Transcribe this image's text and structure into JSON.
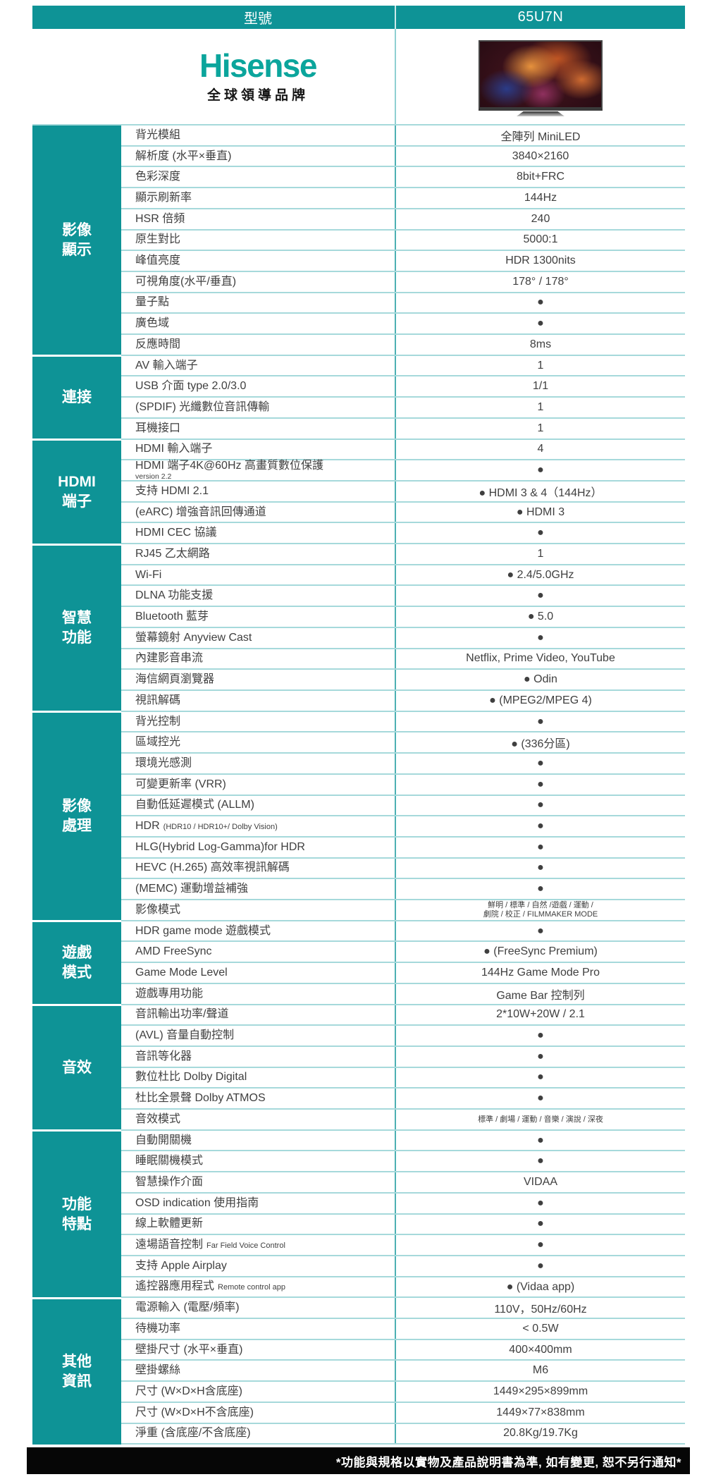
{
  "colors": {
    "header_teal": "#0e9396",
    "brand_teal": "#0ba59c",
    "row_line": "#a6d9db",
    "footer_bg": "#060606"
  },
  "header": {
    "model_label": "型號",
    "model_value": "65U7N"
  },
  "brand": {
    "wordmark": "Hisense",
    "tagline": "全球領導品牌"
  },
  "sections": [
    {
      "category_lines": [
        "影像",
        "顯示"
      ],
      "rows": [
        {
          "label": "背光模組",
          "value": "全陣列 MiniLED"
        },
        {
          "label": "解析度 (水平×垂直)",
          "value": "3840×2160"
        },
        {
          "label": "色彩深度",
          "value": "8bit+FRC"
        },
        {
          "label": "顯示刷新率",
          "value": "144Hz"
        },
        {
          "label": "HSR 倍頻",
          "value": "240"
        },
        {
          "label": "原生對比",
          "value": "5000:1"
        },
        {
          "label": "峰值亮度",
          "value": "HDR 1300nits"
        },
        {
          "label": "可視角度(水平/垂直)",
          "value": "178° / 178°"
        },
        {
          "label": "量子點",
          "value": "●"
        },
        {
          "label": "廣色域",
          "value": "●"
        },
        {
          "label": "反應時間",
          "value": "8ms"
        }
      ]
    },
    {
      "category_lines": [
        "連接"
      ],
      "rows": [
        {
          "label": "AV 輸入端子",
          "value": "1"
        },
        {
          "label": "USB 介面 type 2.0/3.0",
          "value": "1/1"
        },
        {
          "label": "(SPDIF) 光纖數位音訊傳輸",
          "value": "1"
        },
        {
          "label": "耳機接口",
          "value": "1"
        }
      ]
    },
    {
      "category_lines": [
        "HDMI",
        "端子"
      ],
      "rows": [
        {
          "label": "HDMI 輸入端子",
          "value": "4"
        },
        {
          "label": "HDMI 端子4K@60Hz 高畫質數位保護",
          "label_sub": "version 2.2",
          "value": "●"
        },
        {
          "label": "支持 HDMI 2.1",
          "value": "● HDMI 3 & 4（144Hz）"
        },
        {
          "label": "(eARC) 增強音訊回傳通道",
          "value": "● HDMI 3"
        },
        {
          "label": "HDMI CEC 協議",
          "value": "●"
        }
      ]
    },
    {
      "category_lines": [
        "智慧",
        "功能"
      ],
      "rows": [
        {
          "label": "RJ45 乙太網路",
          "value": "1"
        },
        {
          "label": "Wi-Fi",
          "value": "● 2.4/5.0GHz"
        },
        {
          "label": "DLNA 功能支援",
          "value": "●"
        },
        {
          "label": "Bluetooth 藍芽",
          "value": "● 5.0"
        },
        {
          "label": "螢幕鏡射 Anyview Cast",
          "value": "●"
        },
        {
          "label": "內建影音串流",
          "value": "Netflix, Prime Video, YouTube"
        },
        {
          "label": "海信網頁瀏覽器",
          "value": "● Odin"
        },
        {
          "label": "視訊解碼",
          "value": "● (MPEG2/MPEG 4)"
        }
      ]
    },
    {
      "category_lines": [
        "影像",
        "處理"
      ],
      "rows": [
        {
          "label": "背光控制",
          "value": "●"
        },
        {
          "label": "區域控光",
          "value": "● (336分區)"
        },
        {
          "label": "環境光感測",
          "value": "●"
        },
        {
          "label": "可變更新率 (VRR)",
          "value": "●"
        },
        {
          "label": "自動低延遲模式 (ALLM)",
          "value": "●"
        },
        {
          "label": "HDR",
          "label_small": "(HDR10 / HDR10+/ Dolby Vision)",
          "value": "●"
        },
        {
          "label": "HLG(Hybrid Log-Gamma)for HDR",
          "value": "●"
        },
        {
          "label": "HEVC (H.265) 高效率視訊解碼",
          "value": "●"
        },
        {
          "label": "(MEMC) 運動增益補強",
          "value": "●"
        },
        {
          "label": "影像模式",
          "small": true,
          "value": "鮮明 / 標準 / 自然 /遊戲 / 運動 /",
          "value2": "劇院 / 校正 / FILMMAKER MODE"
        }
      ]
    },
    {
      "category_lines": [
        "遊戲",
        "模式"
      ],
      "rows": [
        {
          "label": "HDR game mode 遊戲模式",
          "value": "●"
        },
        {
          "label": "AMD FreeSync",
          "value": "● (FreeSync Premium)"
        },
        {
          "label": "Game Mode Level",
          "value": "144Hz Game Mode Pro"
        },
        {
          "label": "遊戲專用功能",
          "value": "Game Bar 控制列"
        }
      ]
    },
    {
      "category_lines": [
        "音效"
      ],
      "rows": [
        {
          "label": "音訊輸出功率/聲道",
          "value": "2*10W+20W / 2.1"
        },
        {
          "label": "(AVL) 音量自動控制",
          "value": "●"
        },
        {
          "label": "音訊等化器",
          "value": "●"
        },
        {
          "label": "數位杜比 Dolby Digital",
          "value": "●"
        },
        {
          "label": "杜比全景聲 Dolby ATMOS",
          "value": "●"
        },
        {
          "label": "音效模式",
          "small": true,
          "value": "標準 / 劇場 / 運動 / 音樂 / 演說 / 深夜"
        }
      ]
    },
    {
      "category_lines": [
        "功能",
        "特點"
      ],
      "rows": [
        {
          "label": "自動開關機",
          "value": "●"
        },
        {
          "label": "睡眠關機模式",
          "value": "●"
        },
        {
          "label": "智慧操作介面",
          "value": "VIDAA"
        },
        {
          "label": "OSD indication 使用指南",
          "value": "●"
        },
        {
          "label": "線上軟體更新",
          "value": "●"
        },
        {
          "label": "遠場語音控制",
          "label_small": "Far Field Voice Control",
          "value": "●"
        },
        {
          "label": "支持 Apple Airplay",
          "value": "●"
        },
        {
          "label": "遙控器應用程式",
          "label_small": "Remote control app",
          "value": "● (Vidaa app)"
        }
      ]
    },
    {
      "category_lines": [
        "其他",
        "資訊"
      ],
      "rows": [
        {
          "label": "電源輸入 (電壓/頻率)",
          "value": "110V，50Hz/60Hz"
        },
        {
          "label": "待機功率",
          "value": "< 0.5W"
        },
        {
          "label": "壁掛尺寸 (水平×垂直)",
          "value": "400×400mm"
        },
        {
          "label": "壁掛螺絲",
          "value": "M6"
        },
        {
          "label": "尺寸 (W×D×H含底座)",
          "value": "1449×295×899mm"
        },
        {
          "label": "尺寸 (W×D×H不含底座)",
          "value": "1449×77×838mm"
        },
        {
          "label": "淨重 (含底座/不含底座)",
          "value": "20.8Kg/19.7Kg"
        }
      ]
    }
  ],
  "footer": {
    "note": "*功能與規格以實物及產品說明書為準, 如有變更, 恕不另行通知*"
  }
}
